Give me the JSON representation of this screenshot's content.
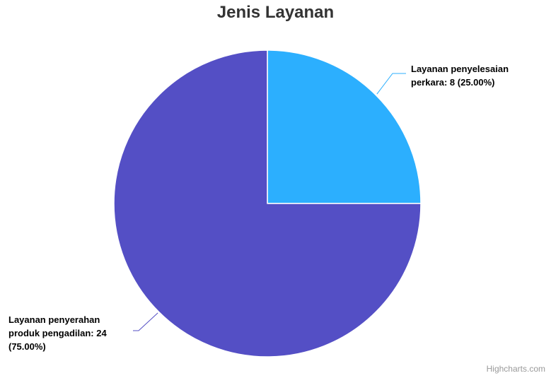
{
  "chart_data": {
    "type": "pie",
    "title": "Jenis Layanan",
    "slices": [
      {
        "name": "Layanan penyelesaian perkara",
        "value": 8,
        "percent": "25.00%",
        "label": "Layanan penyelesaian perkara: 8 (25.00%)",
        "color": "#2caffe"
      },
      {
        "name": "Layanan penyerahan produk pengadilan",
        "value": 24,
        "percent": "75.00%",
        "label": "Layanan penyerahan produk pengadilan: 24 (75.00%)",
        "color": "#544fc5"
      }
    ],
    "legend": "none"
  },
  "credits": "Highcharts.com"
}
